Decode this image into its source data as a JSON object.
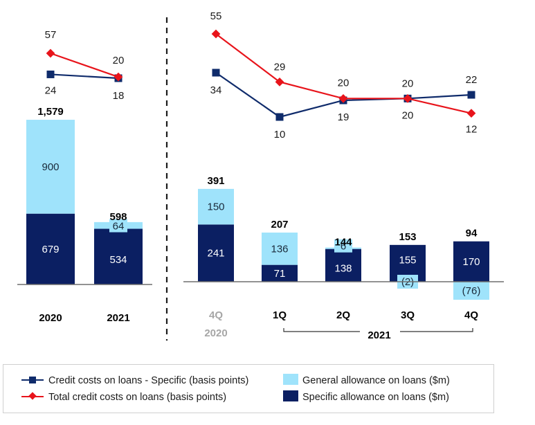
{
  "colors": {
    "general": "#9fe3fb",
    "specific": "#0b1f62",
    "line_specific": "#0f2b6b",
    "line_total": "#e8141b",
    "axis": "#6e6e6e",
    "muted_label": "#a6a6a6",
    "legend_border": "#cfcfcf"
  },
  "chart_data": [
    {
      "id": "annual",
      "type": "bar",
      "stacked": true,
      "categories": [
        "2020",
        "2021"
      ],
      "series": [
        {
          "name": "Specific allowance on loans ($m)",
          "values": [
            679,
            534
          ]
        },
        {
          "name": "General allowance on loans ($m)",
          "values": [
            900,
            64
          ]
        }
      ],
      "totals": [
        "1,579",
        "598"
      ],
      "segment_labels": {
        "specific": [
          "679",
          "534"
        ],
        "general": [
          "900",
          "64"
        ]
      },
      "lines": [
        {
          "name": "Credit costs on loans - Specific (basis points)",
          "values": [
            24,
            18
          ],
          "labels": [
            "24",
            "18"
          ]
        },
        {
          "name": "Total credit costs on loans (basis points)",
          "values": [
            57,
            20
          ],
          "labels": [
            "57",
            "20"
          ]
        }
      ]
    },
    {
      "id": "quarterly",
      "type": "bar",
      "stacked": true,
      "categories": [
        "4Q",
        "1Q",
        "2Q",
        "3Q",
        "4Q"
      ],
      "category_subtitles": [
        "2020",
        "",
        "",
        "",
        ""
      ],
      "group_label": "2021",
      "series": [
        {
          "name": "Specific allowance on loans ($m)",
          "values": [
            241,
            71,
            138,
            155,
            170
          ]
        },
        {
          "name": "General allowance on loans ($m)",
          "values": [
            150,
            136,
            6,
            -2,
            -76
          ]
        }
      ],
      "totals": [
        "391",
        "207",
        "144",
        "153",
        "94"
      ],
      "segment_labels": {
        "specific": [
          "241",
          "71",
          "138",
          "155",
          "170"
        ],
        "general": [
          "150",
          "136",
          "6",
          "(2)",
          "(76)"
        ]
      },
      "lines": [
        {
          "name": "Credit costs on loans - Specific (basis points)",
          "values": [
            34,
            10,
            19,
            20,
            22
          ],
          "labels": [
            "34",
            "10",
            "19",
            "20",
            "22"
          ]
        },
        {
          "name": "Total credit costs on loans (basis points)",
          "values": [
            55,
            29,
            20,
            20,
            12
          ],
          "labels": [
            "55",
            "29",
            "20",
            "20",
            "12"
          ]
        }
      ]
    }
  ],
  "legend": {
    "items": [
      {
        "label": "Credit costs on loans - Specific (basis points)",
        "icon": "line-square-marker"
      },
      {
        "label": "Total credit costs on loans (basis points)",
        "icon": "line-diamond-marker"
      },
      {
        "label": "General allowance on loans ($m)",
        "icon": "light-blue-swatch"
      },
      {
        "label": "Specific allowance on loans ($m)",
        "icon": "dark-blue-swatch"
      }
    ]
  }
}
